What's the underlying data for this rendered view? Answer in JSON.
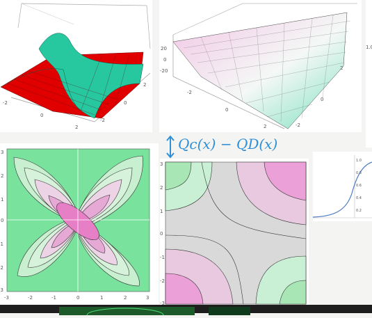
{
  "annotation": {
    "formula": "Qc(x) − QD(x)",
    "arrow_icon": "double-arrow-vertical-icon"
  },
  "panels": {
    "surface_a": {
      "z_ticks": [],
      "x_ticks": [
        "-2",
        "0",
        "2"
      ],
      "y_ticks": [
        "-2",
        "0",
        "2"
      ],
      "colors": {
        "low": "#e00000",
        "ridge": "#27c7a0"
      }
    },
    "surface_b": {
      "z_ticks": [
        "20",
        "0",
        "-20"
      ],
      "x_ticks": [
        "-2",
        "0",
        "2"
      ],
      "y_ticks": [
        "-2",
        "0",
        "2"
      ],
      "colors": {
        "pink": "#e9a3d1",
        "green": "#9fe8c8"
      }
    },
    "contour_a": {
      "x_ticks": [
        "-3",
        "-2",
        "-1",
        "0",
        "1",
        "2",
        "3"
      ],
      "y_ticks": [
        "3",
        "2",
        "1",
        "0",
        "-1",
        "-2",
        "-3"
      ],
      "colors": {
        "background": "#79e39e",
        "center": "#e77fc6"
      }
    },
    "contour_b": {
      "y_ticks": [
        "3",
        "2",
        "1",
        "0",
        "-1",
        "-2",
        "-3"
      ],
      "colors": {
        "gray": "#d9d9d9",
        "green": "#a8e7b5",
        "pink": "#eba0d7"
      }
    },
    "side_top": {
      "tick": "1.0"
    },
    "side_curve": {
      "tick_labels": [
        "1.0",
        "0.8",
        "0.6",
        "0.4",
        "0.2"
      ]
    }
  }
}
